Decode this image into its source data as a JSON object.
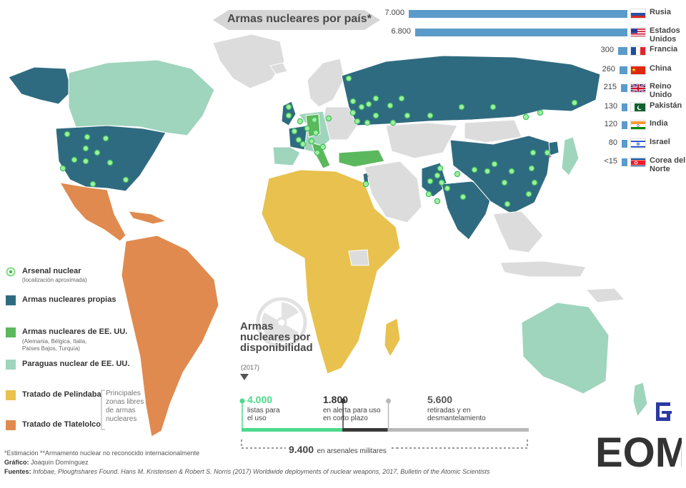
{
  "title": "Armas nucleares por país*",
  "ranking": [
    {
      "value": "7.000",
      "country": "Rusia",
      "n": 7000,
      "flag": "russia"
    },
    {
      "value": "6.800",
      "country": "Estados Unidos",
      "n": 6800,
      "flag": "usa"
    },
    {
      "value": "300",
      "country": "Francia",
      "n": 300,
      "flag": "france"
    },
    {
      "value": "260",
      "country": "China",
      "n": 260,
      "flag": "china"
    },
    {
      "value": "215",
      "country": "Reino Unido",
      "n": 215,
      "flag": "uk"
    },
    {
      "value": "130",
      "country": "Pakistán",
      "n": 130,
      "flag": "pakistan"
    },
    {
      "value": "120",
      "country": "India",
      "n": 120,
      "flag": "india"
    },
    {
      "value": "80",
      "country": "Israel",
      "n": 80,
      "flag": "israel"
    },
    {
      "value": "<15",
      "country": "Corea del Norte",
      "n": 15,
      "flag": "north-korea"
    }
  ],
  "legend": {
    "arsenal": {
      "label": "Arsenal nuclear",
      "sub": "(localización aproximada)"
    },
    "own": {
      "label": "Armas nucleares propias"
    },
    "us_weapons": {
      "label": "Armas nucleares de EE. UU.",
      "sub1": "(Alemania, Bélgica, Italia,",
      "sub2": "Países Bajos, Turquía)"
    },
    "umbrella": {
      "label": "Paraguas nuclear de EE. UU."
    },
    "pelindaba": {
      "label": "Tratado de Pelindaba"
    },
    "tlatelolco": {
      "label": "Tratado de Tlatelolco"
    },
    "zones_1": "Principales",
    "zones_2": "zonas libres",
    "zones_3": "de armas",
    "zones_4": "nucleares"
  },
  "colors": {
    "own": "#2f6b80",
    "us_weapons": "#5cb85c",
    "umbrella": "#9fd4bd",
    "pelindaba": "#e8c14e",
    "tlatelolco": "#e08a4f",
    "neutral": "#dcdcdc",
    "marker": "#7ee07e",
    "bar": "#5b9bc9"
  },
  "availability": {
    "title_1": "Armas",
    "title_2": "nucleares por",
    "title_3": "disponibilidad",
    "year": "(2017)",
    "ready": {
      "value": "4.000",
      "desc_1": "listas para",
      "desc_2": "el uso",
      "n": 4000
    },
    "alert": {
      "value": "1.800",
      "desc_1": "en alerta para uso",
      "desc_2": "en corto plazo",
      "n": 1800
    },
    "retired": {
      "value": "5.600",
      "desc_1": "retiradas y en",
      "desc_2": "desmantelamiento",
      "n": 5600
    },
    "total_value": "9.400",
    "total_label": "en arsenales militares"
  },
  "map_marks": {
    "unrecognized": "**"
  },
  "footer": {
    "note": "*Estimación   **Armamento nuclear no reconocido internacionalmente",
    "graphic_label": "Gráfico:",
    "graphic": "Joaquín Domínguez",
    "sources_label": "Fuentes:",
    "sources": "Infobae, Ploughshares Found. Hans M. Kristensen & Robert S. Norris (2017) Worldwide deployments of nuclear weapons, 2017, Bulletin of the Atomic Scientists"
  },
  "logo": {
    "text": "EOM"
  }
}
